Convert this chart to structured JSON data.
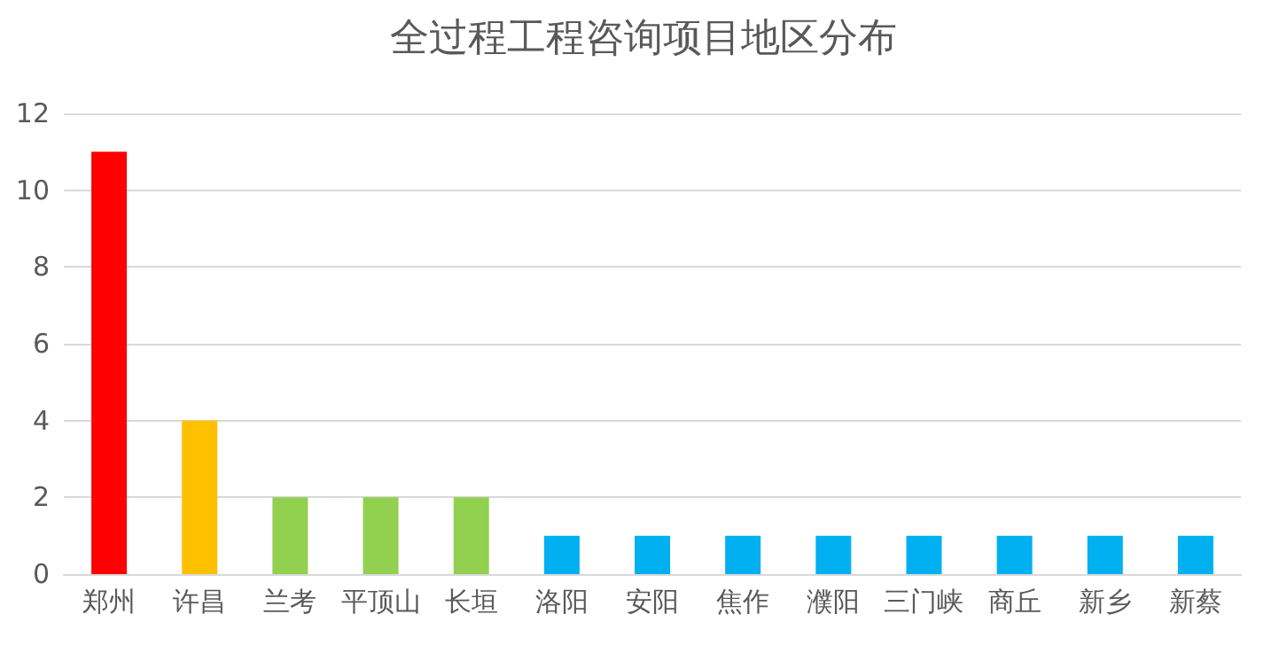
{
  "chart_data": {
    "type": "bar",
    "title": "全过程工程咨询项目地区分布",
    "categories": [
      "郑州",
      "许昌",
      "兰考",
      "平顶山",
      "长垣",
      "洛阳",
      "安阳",
      "焦作",
      "濮阳",
      "三门峡",
      "商丘",
      "新乡",
      "新蔡"
    ],
    "values": [
      11,
      4,
      2,
      2,
      2,
      1,
      1,
      1,
      1,
      1,
      1,
      1,
      1
    ],
    "colors": [
      "#ff0000",
      "#ffc000",
      "#92d050",
      "#92d050",
      "#92d050",
      "#00b0f0",
      "#00b0f0",
      "#00b0f0",
      "#00b0f0",
      "#00b0f0",
      "#00b0f0",
      "#00b0f0",
      "#00b0f0"
    ],
    "ylim": [
      0,
      12
    ],
    "yticks": [
      0,
      2,
      4,
      6,
      8,
      10,
      12
    ],
    "grid": "y"
  }
}
